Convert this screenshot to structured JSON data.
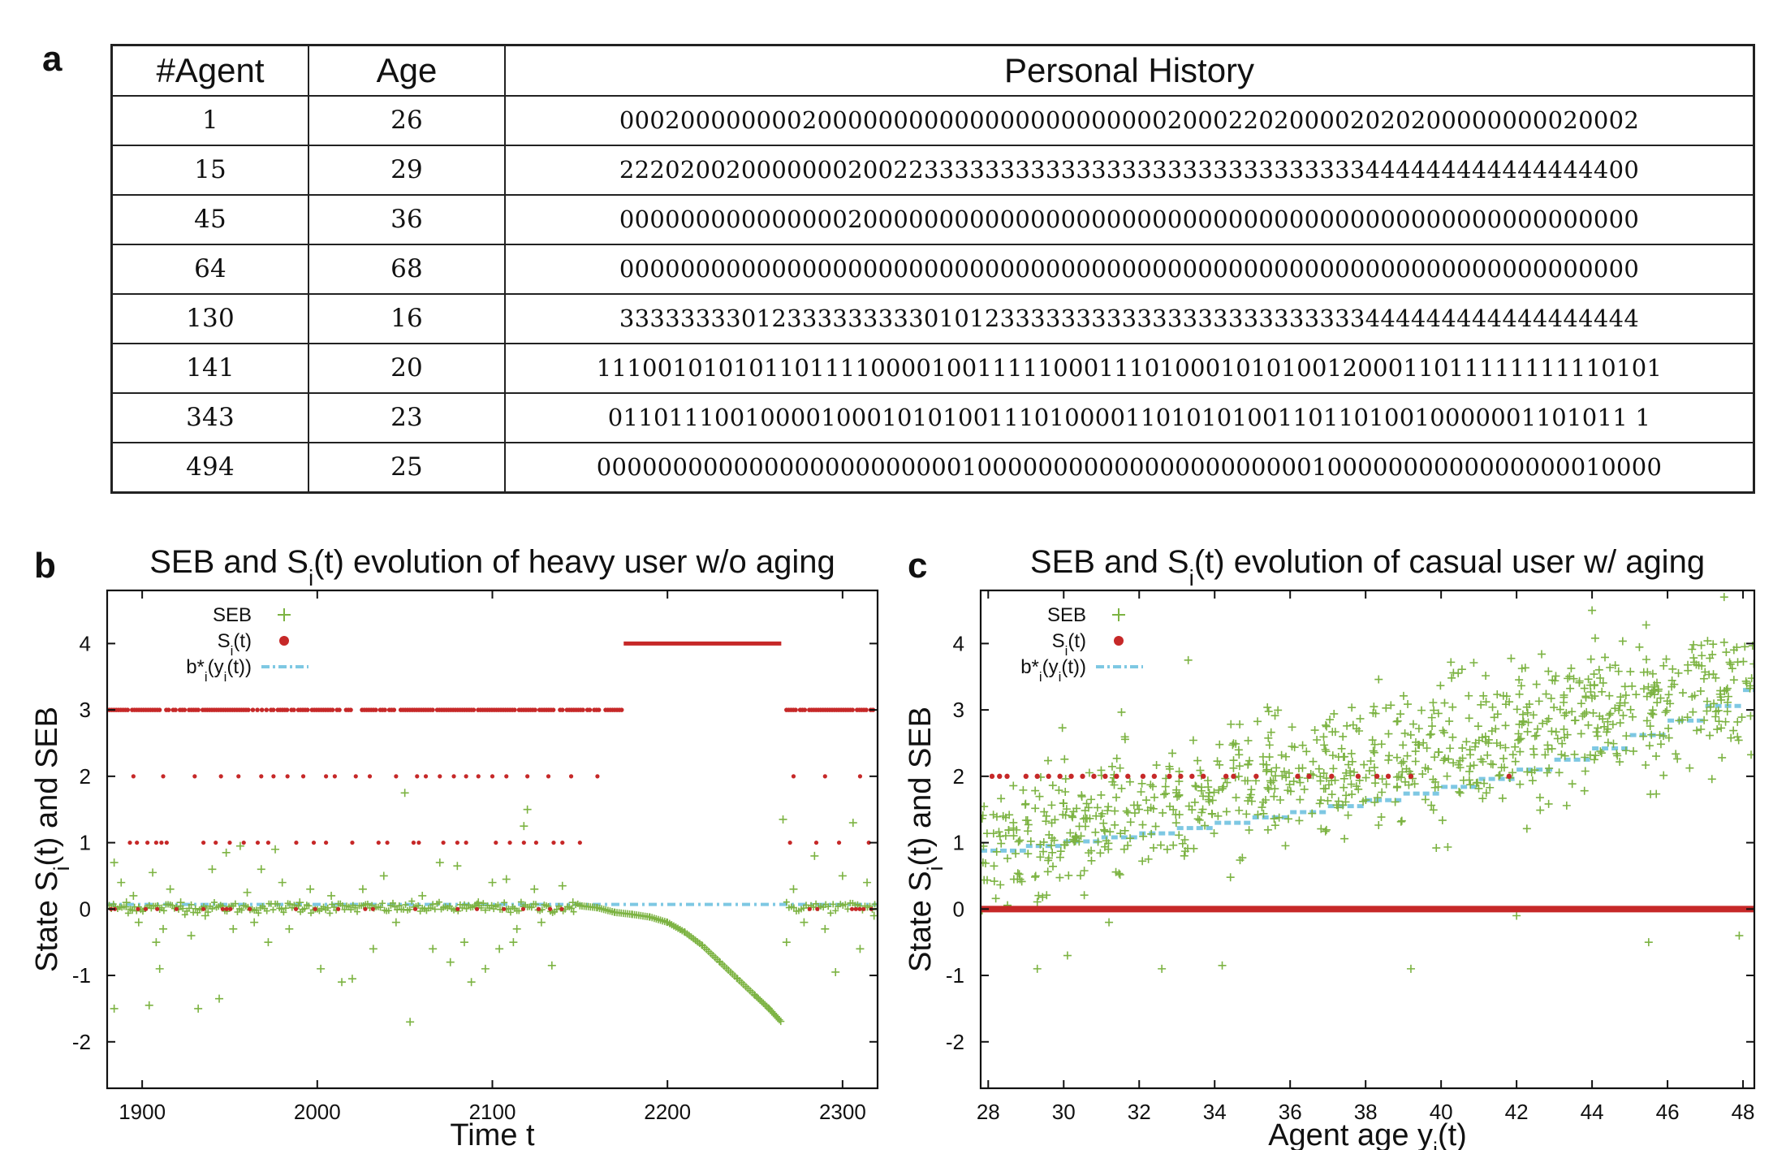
{
  "panels": {
    "a": "a",
    "b": "b",
    "c": "c"
  },
  "table": {
    "headers": [
      "#Agent",
      "Age",
      "Personal History"
    ],
    "rows": [
      [
        "1",
        "26",
        "0002000000002000000000000000000000002000220200002020200000000020002"
      ],
      [
        "15",
        "29",
        "2220200200000002002233333333333333333333333333333444444444444444400"
      ],
      [
        "45",
        "36",
        "0000000000000002000000000000000000000000000000000000000000000000000"
      ],
      [
        "64",
        "68",
        "0000000000000000000000000000000000000000000000000000000000000000000"
      ],
      [
        "130",
        "16",
        "3333333301233333333301012333333333333333333333333444444444444444444"
      ],
      [
        "141",
        "20",
        "1110010101011011110000100111110001110100010101001200011011111111110101"
      ],
      [
        "343",
        "23",
        "0110111001000010001010100111010000110101010011011010010000001101011 1"
      ],
      [
        "494",
        "25",
        "0000000000000000000000001000000000000000000000010000000000000000010000"
      ]
    ]
  },
  "chart_data": [
    {
      "type": "scatter",
      "title": "SEB and Sᵢ(t) evolution of heavy user w/o aging",
      "title_main": "SEB and S",
      "title_sub": "i",
      "title_rest": "(t) evolution of heavy user w/o aging",
      "xlabel": "Time t",
      "ylabel": "State Sᵢ(t) and SEB",
      "ylabel_main": "State S",
      "ylabel_sub": "i",
      "ylabel_rest": "(t) and SEB",
      "xlim": [
        1880,
        2320
      ],
      "ylim": [
        -2.7,
        4.8
      ],
      "xticks": [
        "1900",
        "2000",
        "2100",
        "2200",
        "2300"
      ],
      "xtick_values": [
        1900,
        2000,
        2100,
        2200,
        2300
      ],
      "yticks": [
        "-2",
        "-1",
        "0",
        "1",
        "2",
        "3",
        "4"
      ],
      "ytick_values": [
        -2,
        -1,
        0,
        1,
        2,
        3,
        4
      ],
      "legend": {
        "position": "top-left",
        "entries": [
          {
            "main": "SEB",
            "sub": "",
            "rest": ""
          },
          {
            "main": "S",
            "sub": "i",
            "rest": "(t)"
          },
          {
            "main": "b*",
            "sub": "i",
            "rest": "(y",
            "sub2": "i",
            "rest2": "(t))"
          }
        ]
      },
      "colors": {
        "seb": "#7cb342",
        "state": "#c62828",
        "baseline": "#7ec8e3"
      },
      "series": {
        "state_segments_level4": [
          [
            2175,
            2265
          ]
        ],
        "state_dense_level3": [
          [
            1880,
            2175
          ],
          [
            2268,
            2320
          ]
        ],
        "state_points_level2": [
          1895,
          1912,
          1930,
          1945,
          1955,
          1968,
          1975,
          1983,
          1992,
          2005,
          2010,
          2022,
          2030,
          2045,
          2057,
          2062,
          2070,
          2078,
          2085,
          2092,
          2100,
          2108,
          2120,
          2132,
          2145,
          2160,
          2272,
          2290,
          2310
        ],
        "state_points_level1": [
          1893,
          1897,
          1903,
          1908,
          1911,
          1914,
          1935,
          1942,
          1950,
          1958,
          1966,
          1972,
          1988,
          1998,
          2005,
          2020,
          2035,
          2040,
          2055,
          2058,
          2072,
          2080,
          2085,
          2102,
          2110,
          2118,
          2125,
          2135,
          2140,
          2150,
          2270,
          2285,
          2298,
          2315
        ],
        "baseline_value": 0.07,
        "seb_scatter": [
          [
            1884,
            -1.5
          ],
          [
            1884,
            0.7
          ],
          [
            1888,
            0.4
          ],
          [
            1891,
            0.1
          ],
          [
            1895,
            0.2
          ],
          [
            1898,
            -0.2
          ],
          [
            1904,
            -1.45
          ],
          [
            1906,
            0.55
          ],
          [
            1908,
            -0.5
          ],
          [
            1910,
            -0.9
          ],
          [
            1912,
            -0.3
          ],
          [
            1916,
            0.3
          ],
          [
            1922,
            0.1
          ],
          [
            1928,
            -0.4
          ],
          [
            1932,
            -1.5
          ],
          [
            1936,
            -0.1
          ],
          [
            1940,
            0.6
          ],
          [
            1944,
            -1.35
          ],
          [
            1948,
            0.85
          ],
          [
            1952,
            -0.3
          ],
          [
            1956,
            0.95
          ],
          [
            1960,
            0.25
          ],
          [
            1964,
            -0.2
          ],
          [
            1968,
            0.6
          ],
          [
            1972,
            -0.5
          ],
          [
            1976,
            0.9
          ],
          [
            1980,
            0.4
          ],
          [
            1984,
            -0.3
          ],
          [
            1990,
            0.1
          ],
          [
            1996,
            0.3
          ],
          [
            2002,
            -0.9
          ],
          [
            2008,
            0.2
          ],
          [
            2014,
            -1.1
          ],
          [
            2020,
            -1.05
          ],
          [
            2026,
            0.3
          ],
          [
            2032,
            -0.6
          ],
          [
            2038,
            0.5
          ],
          [
            2045,
            -0.2
          ],
          [
            2050,
            1.75
          ],
          [
            2053,
            -1.7
          ],
          [
            2060,
            0.2
          ],
          [
            2066,
            -0.6
          ],
          [
            2070,
            0.7
          ],
          [
            2076,
            -0.8
          ],
          [
            2080,
            0.65
          ],
          [
            2084,
            -0.5
          ],
          [
            2088,
            -1.1
          ],
          [
            2092,
            0.1
          ],
          [
            2096,
            -0.9
          ],
          [
            2100,
            0.4
          ],
          [
            2104,
            -0.6
          ],
          [
            2108,
            0.45
          ],
          [
            2112,
            -0.5
          ],
          [
            2114,
            -0.3
          ],
          [
            2118,
            1.25
          ],
          [
            2120,
            1.5
          ],
          [
            2124,
            0.3
          ],
          [
            2128,
            -0.2
          ],
          [
            2134,
            -0.85
          ],
          [
            2140,
            0.35
          ],
          [
            2146,
            0.1
          ],
          [
            2266,
            1.35
          ],
          [
            2268,
            -0.5
          ],
          [
            2272,
            0.3
          ],
          [
            2278,
            -0.2
          ],
          [
            2284,
            0.8
          ],
          [
            2290,
            -0.3
          ],
          [
            2296,
            -0.95
          ],
          [
            2300,
            0.5
          ],
          [
            2306,
            1.3
          ],
          [
            2310,
            -0.6
          ],
          [
            2314,
            0.4
          ],
          [
            2318,
            -0.1
          ]
        ],
        "seb_curve": [
          [
            2150,
            0.05
          ],
          [
            2160,
            0.02
          ],
          [
            2170,
            -0.05
          ],
          [
            2180,
            -0.08
          ],
          [
            2190,
            -0.12
          ],
          [
            2200,
            -0.2
          ],
          [
            2210,
            -0.35
          ],
          [
            2220,
            -0.55
          ],
          [
            2230,
            -0.8
          ],
          [
            2240,
            -1.05
          ],
          [
            2250,
            -1.3
          ],
          [
            2258,
            -1.5
          ],
          [
            2265,
            -1.7
          ]
        ]
      }
    },
    {
      "type": "scatter",
      "title": "SEB and Sᵢ(t) evolution of casual user w/ aging",
      "title_main": "SEB and S",
      "title_sub": "i",
      "title_rest": "(t) evolution of casual user w/ aging",
      "xlabel": "Agent age yᵢ(t)",
      "xlabel_main": "Agent age y",
      "xlabel_sub": "i",
      "xlabel_rest": "(t)",
      "ylabel": "State Sᵢ(t) and SEB",
      "ylabel_main": "State S",
      "ylabel_sub": "i",
      "ylabel_rest": "(t) and SEB",
      "xlim": [
        27.8,
        48.3
      ],
      "ylim": [
        -2.7,
        4.8
      ],
      "xticks": [
        "28",
        "30",
        "32",
        "34",
        "36",
        "38",
        "40",
        "42",
        "44",
        "46",
        "48"
      ],
      "xtick_values": [
        28,
        30,
        32,
        34,
        36,
        38,
        40,
        42,
        44,
        46,
        48
      ],
      "yticks": [
        "-2",
        "-1",
        "0",
        "1",
        "2",
        "3",
        "4"
      ],
      "ytick_values": [
        -2,
        -1,
        0,
        1,
        2,
        3,
        4
      ],
      "legend": {
        "position": "top-left",
        "entries": [
          {
            "main": "SEB",
            "sub": "",
            "rest": ""
          },
          {
            "main": "S",
            "sub": "i",
            "rest": "(t)"
          },
          {
            "main": "b*",
            "sub": "i",
            "rest": "(y",
            "sub2": "i",
            "rest2": "(t))"
          }
        ]
      },
      "colors": {
        "seb": "#7cb342",
        "state": "#c62828",
        "baseline": "#7ec8e3"
      },
      "series": {
        "state_level0": [
          27.8,
          48.3
        ],
        "state_points_level2": [
          28.1,
          28.3,
          28.5,
          29.0,
          29.3,
          29.6,
          29.9,
          30.2,
          30.5,
          30.8,
          31.1,
          31.4,
          31.7,
          32.1,
          32.4,
          32.8,
          33.1,
          33.4,
          33.7,
          34.3,
          34.5,
          35.1,
          36.2,
          36.5,
          37.1,
          37.8,
          38.3,
          38.6,
          39.2,
          41.8
        ],
        "baseline_steps": [
          [
            27.8,
            0.88
          ],
          [
            29.0,
            0.95
          ],
          [
            30.0,
            1.02
          ],
          [
            31.0,
            1.08
          ],
          [
            32.0,
            1.14
          ],
          [
            33.0,
            1.22
          ],
          [
            34.0,
            1.3
          ],
          [
            35.0,
            1.38
          ],
          [
            36.0,
            1.46
          ],
          [
            37.0,
            1.55
          ],
          [
            38.0,
            1.64
          ],
          [
            39.0,
            1.74
          ],
          [
            40.0,
            1.84
          ],
          [
            41.0,
            1.96
          ],
          [
            42.0,
            2.1
          ],
          [
            43.0,
            2.25
          ],
          [
            44.0,
            2.42
          ],
          [
            45.0,
            2.62
          ],
          [
            46.0,
            2.84
          ],
          [
            47.0,
            3.06
          ],
          [
            48.0,
            3.3
          ],
          [
            48.3,
            3.38
          ]
        ],
        "seb_center_slope": [
          27.8,
          0.9,
          0.122
        ],
        "seb_count": 900,
        "seb_spread": 0.85,
        "seb_outliers": [
          [
            29.3,
            -0.9
          ],
          [
            30.1,
            -0.7
          ],
          [
            31.2,
            -0.2
          ],
          [
            33.3,
            3.75
          ],
          [
            32.6,
            -0.9
          ],
          [
            34.2,
            -0.85
          ],
          [
            39.2,
            -0.9
          ],
          [
            42.0,
            -0.1
          ],
          [
            44.0,
            4.5
          ],
          [
            45.5,
            -0.5
          ],
          [
            47.5,
            4.7
          ],
          [
            47.9,
            -0.4
          ]
        ]
      }
    }
  ]
}
